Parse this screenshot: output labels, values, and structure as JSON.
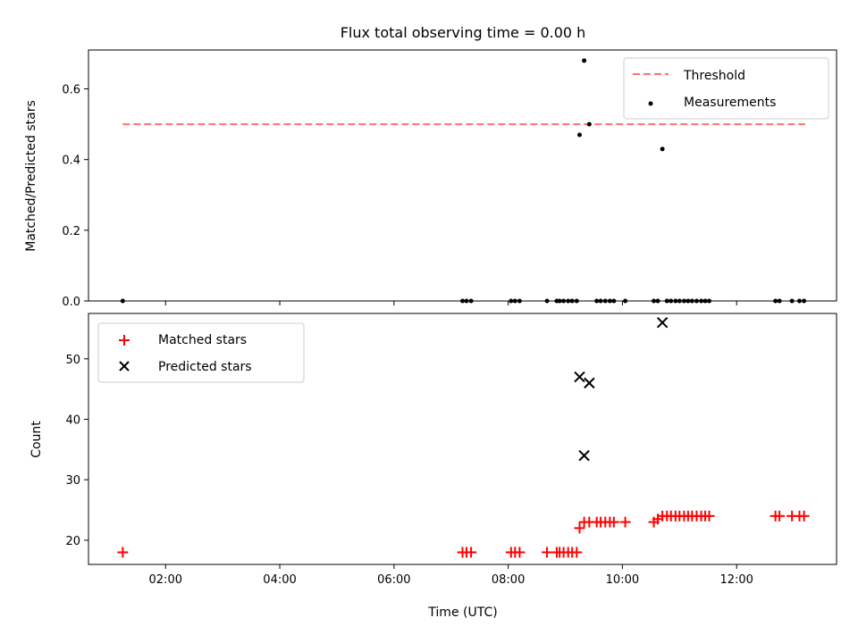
{
  "chart_data": [
    {
      "type": "scatter",
      "title": "Flux total observing time = 0.00 h",
      "xlabel": "",
      "ylabel": "Matched/Predicted stars",
      "xlim_hours": [
        0.65,
        13.75
      ],
      "ylim": [
        0,
        0.71
      ],
      "xticks": [
        2,
        4,
        6,
        8,
        10,
        12
      ],
      "yticks": [
        {
          "value": 0.0,
          "label": "0.0"
        },
        {
          "value": 0.2,
          "label": "0.2"
        },
        {
          "value": 0.4,
          "label": "0.4"
        },
        {
          "value": 0.6,
          "label": "0.6"
        }
      ],
      "legend_placement": "upper-right",
      "threshold": {
        "name": "Threshold",
        "value": 0.5,
        "x_start": 1.25,
        "x_end": 13.2,
        "color": "#ff7070"
      },
      "series": [
        {
          "name": "Measurements",
          "marker": "dot",
          "color": "#000000",
          "points": [
            {
              "x": 1.25,
              "y": 0
            },
            {
              "x": 7.2,
              "y": 0
            },
            {
              "x": 7.27,
              "y": 0
            },
            {
              "x": 7.35,
              "y": 0
            },
            {
              "x": 8.05,
              "y": 0
            },
            {
              "x": 8.12,
              "y": 0
            },
            {
              "x": 8.2,
              "y": 0
            },
            {
              "x": 8.68,
              "y": 0
            },
            {
              "x": 8.85,
              "y": 0
            },
            {
              "x": 8.9,
              "y": 0
            },
            {
              "x": 8.97,
              "y": 0
            },
            {
              "x": 9.05,
              "y": 0
            },
            {
              "x": 9.12,
              "y": 0
            },
            {
              "x": 9.2,
              "y": 0
            },
            {
              "x": 9.25,
              "y": 0.47
            },
            {
              "x": 9.33,
              "y": 0.68
            },
            {
              "x": 9.42,
              "y": 0.5
            },
            {
              "x": 9.55,
              "y": 0
            },
            {
              "x": 9.62,
              "y": 0
            },
            {
              "x": 9.7,
              "y": 0
            },
            {
              "x": 9.78,
              "y": 0
            },
            {
              "x": 9.85,
              "y": 0
            },
            {
              "x": 10.05,
              "y": 0
            },
            {
              "x": 10.55,
              "y": 0
            },
            {
              "x": 10.62,
              "y": 0
            },
            {
              "x": 10.7,
              "y": 0.43
            },
            {
              "x": 10.78,
              "y": 0
            },
            {
              "x": 10.85,
              "y": 0
            },
            {
              "x": 10.93,
              "y": 0
            },
            {
              "x": 11.0,
              "y": 0
            },
            {
              "x": 11.08,
              "y": 0
            },
            {
              "x": 11.15,
              "y": 0
            },
            {
              "x": 11.22,
              "y": 0
            },
            {
              "x": 11.3,
              "y": 0
            },
            {
              "x": 11.38,
              "y": 0
            },
            {
              "x": 11.45,
              "y": 0
            },
            {
              "x": 11.52,
              "y": 0
            },
            {
              "x": 12.68,
              "y": 0
            },
            {
              "x": 12.75,
              "y": 0
            },
            {
              "x": 12.97,
              "y": 0
            },
            {
              "x": 13.1,
              "y": 0
            },
            {
              "x": 13.18,
              "y": 0
            }
          ]
        }
      ]
    },
    {
      "type": "scatter",
      "title": "",
      "xlabel": "Time (UTC)",
      "ylabel": "Count",
      "xlim_hours": [
        0.65,
        13.75
      ],
      "ylim": [
        16,
        57.5
      ],
      "xticks": [
        {
          "value": 2,
          "label": "02:00"
        },
        {
          "value": 4,
          "label": "04:00"
        },
        {
          "value": 6,
          "label": "06:00"
        },
        {
          "value": 8,
          "label": "08:00"
        },
        {
          "value": 10,
          "label": "10:00"
        },
        {
          "value": 12,
          "label": "12:00"
        }
      ],
      "yticks": [
        {
          "value": 20,
          "label": "20"
        },
        {
          "value": 30,
          "label": "30"
        },
        {
          "value": 40,
          "label": "40"
        },
        {
          "value": 50,
          "label": "50"
        }
      ],
      "legend_placement": "upper-left",
      "series": [
        {
          "name": "Matched stars",
          "marker": "plus",
          "color": "#ff0000",
          "points": [
            {
              "x": 1.25,
              "y": 18
            },
            {
              "x": 7.2,
              "y": 18
            },
            {
              "x": 7.27,
              "y": 18
            },
            {
              "x": 7.35,
              "y": 18
            },
            {
              "x": 8.05,
              "y": 18
            },
            {
              "x": 8.12,
              "y": 18
            },
            {
              "x": 8.2,
              "y": 18
            },
            {
              "x": 8.68,
              "y": 18
            },
            {
              "x": 8.85,
              "y": 18
            },
            {
              "x": 8.9,
              "y": 18
            },
            {
              "x": 8.97,
              "y": 18
            },
            {
              "x": 9.05,
              "y": 18
            },
            {
              "x": 9.12,
              "y": 18
            },
            {
              "x": 9.2,
              "y": 18
            },
            {
              "x": 9.25,
              "y": 22
            },
            {
              "x": 9.33,
              "y": 23
            },
            {
              "x": 9.42,
              "y": 23
            },
            {
              "x": 9.55,
              "y": 23
            },
            {
              "x": 9.62,
              "y": 23
            },
            {
              "x": 9.7,
              "y": 23
            },
            {
              "x": 9.78,
              "y": 23
            },
            {
              "x": 9.85,
              "y": 23
            },
            {
              "x": 10.05,
              "y": 23
            },
            {
              "x": 10.55,
              "y": 23
            },
            {
              "x": 10.62,
              "y": 23.5
            },
            {
              "x": 10.7,
              "y": 24
            },
            {
              "x": 10.78,
              "y": 24
            },
            {
              "x": 10.85,
              "y": 24
            },
            {
              "x": 10.93,
              "y": 24
            },
            {
              "x": 11.0,
              "y": 24
            },
            {
              "x": 11.08,
              "y": 24
            },
            {
              "x": 11.15,
              "y": 24
            },
            {
              "x": 11.22,
              "y": 24
            },
            {
              "x": 11.3,
              "y": 24
            },
            {
              "x": 11.38,
              "y": 24
            },
            {
              "x": 11.45,
              "y": 24
            },
            {
              "x": 11.52,
              "y": 24
            },
            {
              "x": 12.68,
              "y": 24
            },
            {
              "x": 12.75,
              "y": 24
            },
            {
              "x": 12.97,
              "y": 24
            },
            {
              "x": 13.1,
              "y": 24
            },
            {
              "x": 13.18,
              "y": 24
            }
          ]
        },
        {
          "name": "Predicted stars",
          "marker": "x",
          "color": "#000000",
          "points": [
            {
              "x": 9.25,
              "y": 47
            },
            {
              "x": 9.33,
              "y": 34
            },
            {
              "x": 9.42,
              "y": 46
            },
            {
              "x": 10.7,
              "y": 56
            }
          ]
        }
      ]
    }
  ]
}
